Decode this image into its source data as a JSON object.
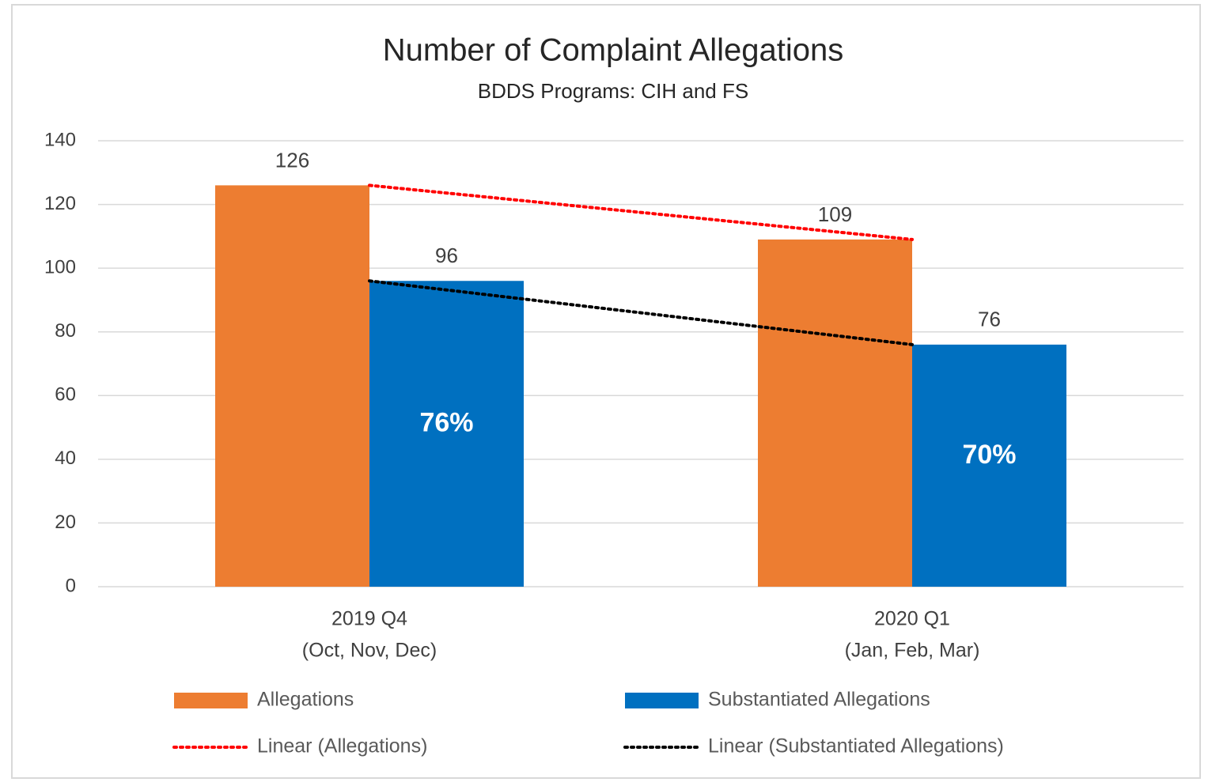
{
  "chart_data": {
    "type": "bar",
    "title": "Number of Complaint Allegations",
    "subtitle": "BDDS Programs:  CIH and FS",
    "categories": [
      [
        "2019 Q4",
        "(Oct, Nov, Dec)"
      ],
      [
        "2020 Q1",
        "(Jan, Feb, Mar)"
      ]
    ],
    "series": [
      {
        "name": "Allegations",
        "color": "#ed7d31",
        "values": [
          126,
          109
        ]
      },
      {
        "name": "Substantiated Allegations",
        "color": "#0070c0",
        "values": [
          96,
          76
        ]
      }
    ],
    "annotations": [
      "76%",
      "70%"
    ],
    "trendlines": [
      {
        "name": "Linear (Allegations)",
        "color": "#ff0000",
        "series": 0
      },
      {
        "name": "Linear (Substantiated Allegations)",
        "color": "#000000",
        "series": 1
      }
    ],
    "ylim": [
      0,
      140
    ],
    "yticks": [
      0,
      20,
      40,
      60,
      80,
      100,
      120,
      140
    ],
    "grid": true
  }
}
